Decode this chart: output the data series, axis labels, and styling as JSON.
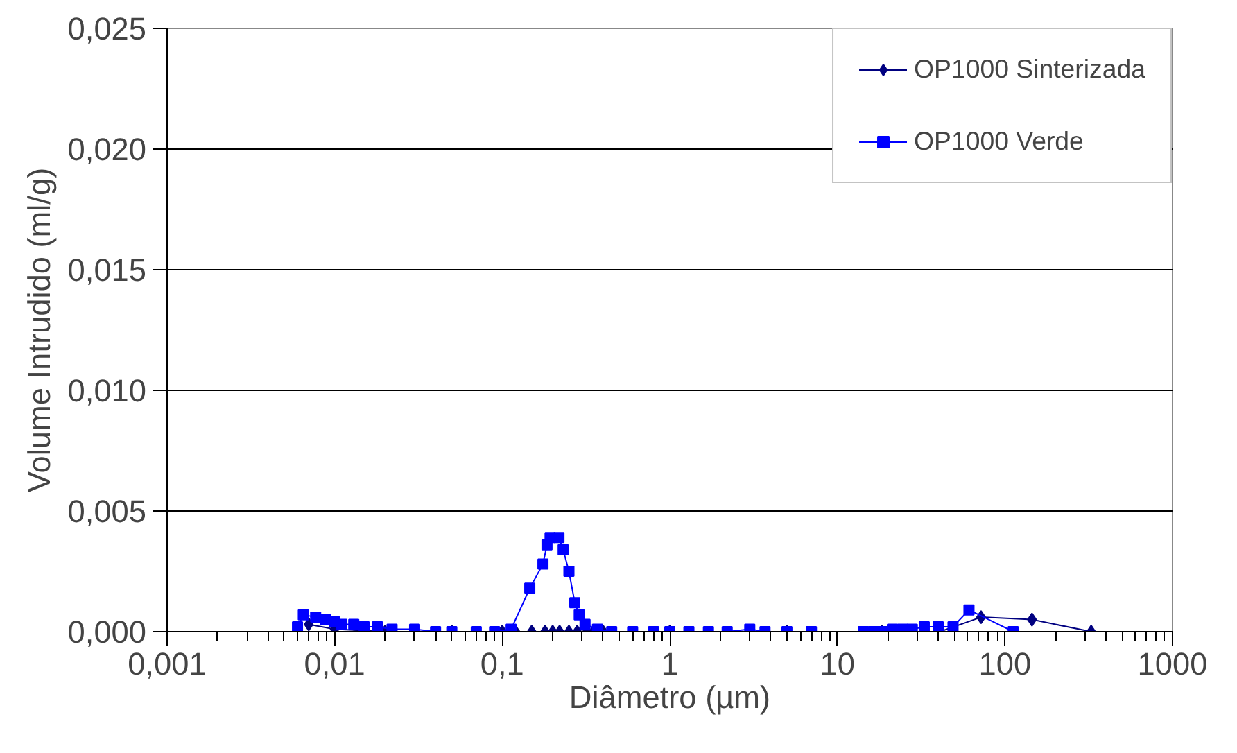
{
  "chart_data": {
    "type": "line",
    "xlabel": "Diâmetro (µm)",
    "ylabel": "Volume Intrudido (ml/g)",
    "log": "x",
    "xlim": [
      0.001,
      1000
    ],
    "xticks": [
      {
        "value": 0.001,
        "label": "0,001"
      },
      {
        "value": 0.01,
        "label": "0,01"
      },
      {
        "value": 0.1,
        "label": "0,1"
      },
      1,
      10,
      100,
      1000
    ],
    "ylim": [
      0,
      0.025
    ],
    "yticks": [
      {
        "value": 0,
        "label": "0,000"
      },
      {
        "value": 0.005,
        "label": "0,005"
      },
      {
        "value": 0.01,
        "label": "0,010"
      },
      {
        "value": 0.015,
        "label": "0,015"
      },
      {
        "value": 0.02,
        "label": "0,020"
      },
      {
        "value": 0.025,
        "label": "0,025"
      }
    ],
    "grid": "y",
    "legend": "top right",
    "series": [
      {
        "name": "OP1000 Sinterizada",
        "color": "#000080",
        "marker": "diamond",
        "x": [
          0.007,
          0.01,
          0.02,
          0.05,
          0.1,
          0.12,
          0.15,
          0.18,
          0.2,
          0.22,
          0.25,
          0.28,
          0.32,
          0.35,
          0.4,
          1,
          5,
          18.5,
          23.5,
          33,
          41,
          72,
          145,
          327
        ],
        "values": [
          0.0003,
          0.0001,
          0,
          0,
          0,
          0,
          0,
          0,
          0,
          0,
          0,
          0,
          0,
          0,
          0,
          0,
          0,
          0,
          0,
          0,
          0,
          0.0006,
          0.0005,
          0
        ]
      },
      {
        "name": "OP1000 Verde",
        "color": "#0000ff",
        "marker": "square",
        "x": [
          0.006,
          0.0065,
          0.0077,
          0.0088,
          0.01,
          0.011,
          0.013,
          0.015,
          0.018,
          0.022,
          0.03,
          0.04,
          0.05,
          0.07,
          0.09,
          0.113,
          0.146,
          0.175,
          0.185,
          0.193,
          0.218,
          0.231,
          0.25,
          0.271,
          0.288,
          0.312,
          0.37,
          0.45,
          0.6,
          0.8,
          1,
          1.3,
          1.7,
          2.2,
          3,
          3.7,
          5,
          7,
          14.3,
          16.4,
          18.6,
          21.3,
          24.5,
          28,
          33,
          40,
          49,
          61,
          112
        ],
        "values": [
          0.0002,
          0.0007,
          0.0006,
          0.0005,
          0.0004,
          0.0003,
          0.0003,
          0.0002,
          0.0002,
          0.0001,
          0.0001,
          0,
          0,
          0,
          0,
          0.0001,
          0.0018,
          0.0028,
          0.0036,
          0.0039,
          0.0039,
          0.0034,
          0.0025,
          0.0012,
          0.0007,
          0.0003,
          0.0001,
          0,
          0,
          0,
          0,
          0,
          0,
          0,
          0.0001,
          0,
          0,
          0,
          0,
          0,
          0,
          0.0001,
          0.0001,
          0.0001,
          0.0002,
          0.0002,
          0.0002,
          0.0009,
          0
        ]
      }
    ]
  }
}
